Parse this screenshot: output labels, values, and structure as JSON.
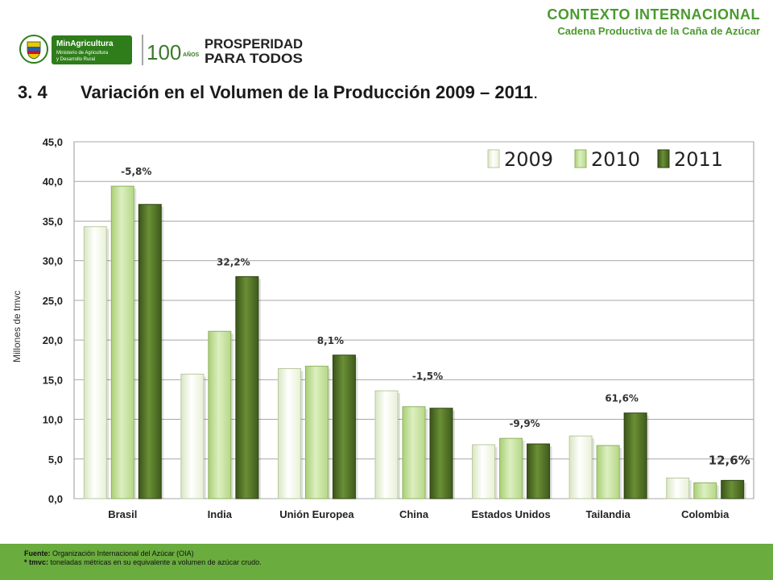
{
  "header": {
    "section_title": "CONTEXTO INTERNACIONAL",
    "section_subtitle": "Cadena Productiva de la Caña de Azúcar"
  },
  "logos": {
    "minagri_line1": "MinAgricultura",
    "minagri_line2": "Ministerio de Agricultura",
    "minagri_line3": "y Desarrollo Rural",
    "anos_number": "100",
    "anos_word": "AÑOS",
    "prosperidad_line1": "PROSPERIDAD",
    "prosperidad_line2": "PARA TODOS"
  },
  "slide": {
    "number": "3. 4",
    "title": "Variación en el Volumen de la Producción 2009 – 2011",
    "title_end": "."
  },
  "chart_data": {
    "type": "bar",
    "categories": [
      "Brasil",
      "India",
      "Unión Europea",
      "China",
      "Estados Unidos",
      "Tailandia",
      "Colombia"
    ],
    "series": [
      {
        "name": "2009",
        "values": [
          34.3,
          15.7,
          16.4,
          13.6,
          6.8,
          7.9,
          2.6
        ]
      },
      {
        "name": "2010",
        "values": [
          39.4,
          21.1,
          16.7,
          11.6,
          7.6,
          6.7,
          2.0
        ]
      },
      {
        "name": "2011",
        "values": [
          37.1,
          28.0,
          18.1,
          11.4,
          6.9,
          10.8,
          2.3
        ]
      }
    ],
    "annotations": [
      "-5,8%",
      "32,2%",
      "8,1%",
      "-1,5%",
      "-9,9%",
      "61,6%",
      "12,6%"
    ],
    "ylabel": "Millones de tmvc",
    "ylim": [
      0,
      45
    ],
    "yticks": [
      "0,0",
      "5,0",
      "10,0",
      "15,0",
      "20,0",
      "25,0",
      "30,0",
      "35,0",
      "40,0",
      "45,0"
    ],
    "legend_position": "top-right",
    "grid": true,
    "colors": {
      "2009": "#f6f9ec",
      "2010": "#c8e2a0",
      "2011": "#4f6e25"
    }
  },
  "footer": {
    "fuente_label": "Fuente:",
    "fuente_text": "Organización Internacional del Azúcar (OIA)",
    "tmvc_label": "* tmvc:",
    "tmvc_text": "toneladas métricas en su equivalente a volumen de azúcar crudo."
  }
}
